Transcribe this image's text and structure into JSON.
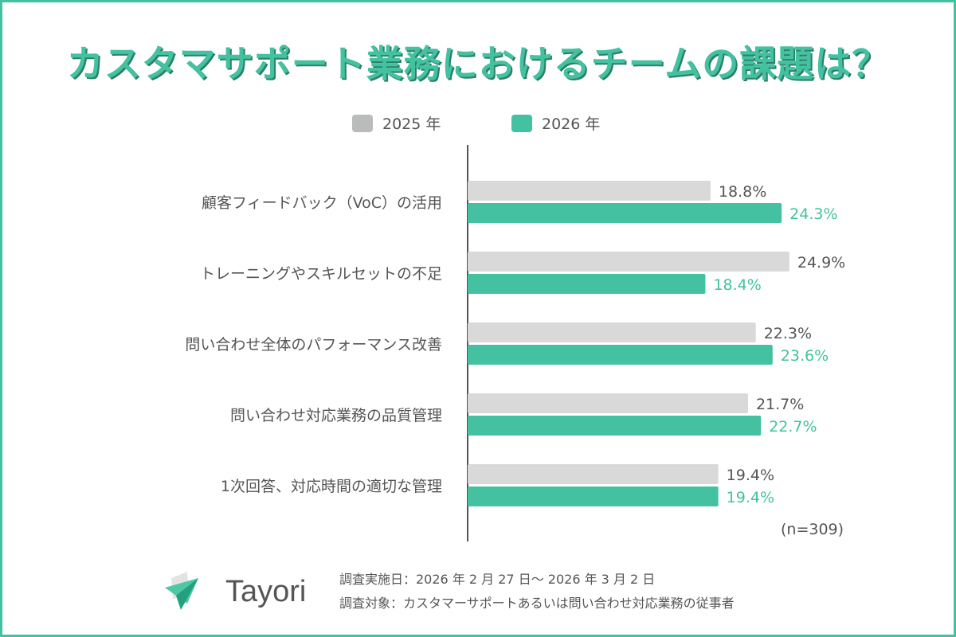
{
  "title": "カスタマサポート業務におけるチームの課題は？",
  "colors": {
    "accent": "#43c1a0",
    "gray": "#d9d9d9",
    "text": "#555555"
  },
  "chart_data": {
    "type": "bar",
    "orientation": "horizontal",
    "categories": [
      "顧客フィードバック（VoC）の活用",
      "トレーニングやスキルセットの不足",
      "問い合わせ全体のパフォーマンス改善",
      "問い合わせ対応業務の品質管理",
      "1次回答、対応時間の適切な管理"
    ],
    "series": [
      {
        "name": "2025 年",
        "color": "#d9d9d9",
        "values": [
          18.8,
          24.9,
          22.3,
          21.7,
          19.4
        ],
        "labels": [
          "18.8%",
          "24.9%",
          "22.3%",
          "21.7%",
          "19.4%"
        ]
      },
      {
        "name": "2026 年",
        "color": "#43c1a0",
        "values": [
          24.3,
          18.4,
          23.6,
          22.7,
          19.4
        ],
        "labels": [
          "24.3%",
          "18.4%",
          "23.6%",
          "22.7%",
          "19.4%"
        ]
      }
    ],
    "unit": "%",
    "xlim": [
      0,
      30
    ],
    "grid": false,
    "legend": "top",
    "note": "(n=309)"
  },
  "footer": {
    "logo": "Tayori",
    "survey_period": "調査実施日：2026 年 2 月 27 日～ 2026 年 3 月 2 日",
    "survey_target": "調査対象：カスタマーサポートあるいは問い合わせ対応業務の従事者"
  }
}
